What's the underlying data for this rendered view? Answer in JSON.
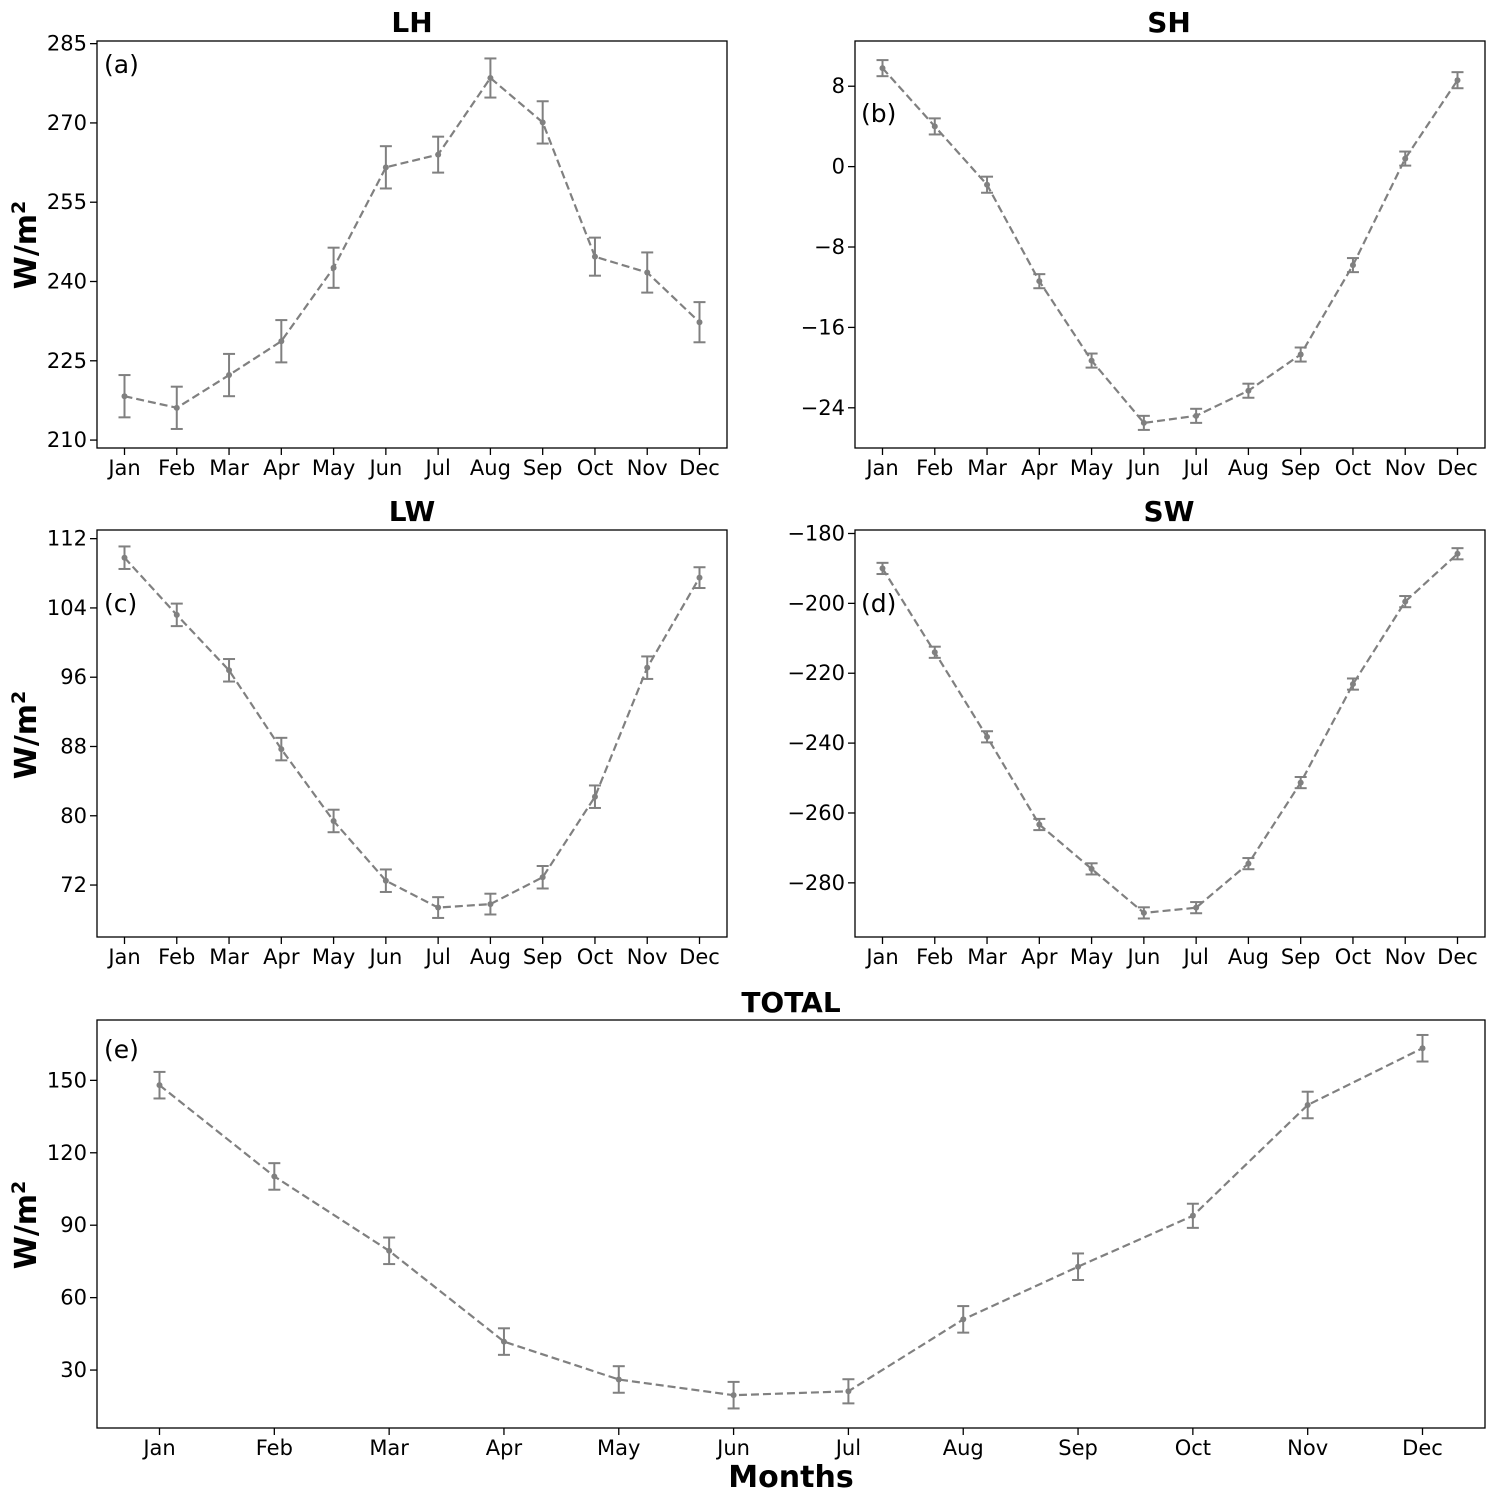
{
  "figure": {
    "xlabel": "Months",
    "series_color": "#808080"
  },
  "chart_data": [
    {
      "id": "a",
      "type": "line",
      "title": "LH",
      "panel_label": "(a)",
      "ylabel_base": "W/m",
      "ylabel_sup": "2",
      "xlabel": "",
      "categories": [
        "Jan",
        "Feb",
        "Mar",
        "Apr",
        "May",
        "Jun",
        "Jul",
        "Aug",
        "Sep",
        "Oct",
        "Nov",
        "Dec"
      ],
      "values": [
        218.3,
        216.1,
        222.3,
        228.7,
        242.6,
        261.6,
        264.0,
        278.5,
        270.1,
        244.7,
        241.7,
        232.3
      ],
      "errors": [
        4.0,
        4.0,
        4.0,
        4.0,
        3.8,
        4.0,
        3.4,
        3.7,
        4.0,
        3.6,
        3.8,
        3.8
      ],
      "ylim": [
        208.5,
        285.5
      ],
      "yticks": [
        210,
        225,
        240,
        255,
        270,
        285
      ],
      "grid": false,
      "style": "gray dashed line with error bars"
    },
    {
      "id": "b",
      "type": "line",
      "title": "SH",
      "panel_label": "(b)",
      "ylabel_base": "",
      "ylabel_sup": "",
      "xlabel": "",
      "categories": [
        "Jan",
        "Feb",
        "Mar",
        "Apr",
        "May",
        "Jun",
        "Jul",
        "Aug",
        "Sep",
        "Oct",
        "Nov",
        "Dec"
      ],
      "values": [
        9.8,
        4.0,
        -1.8,
        -11.4,
        -19.3,
        -25.5,
        -24.8,
        -22.3,
        -18.7,
        -9.8,
        0.8,
        8.6
      ],
      "errors": [
        0.8,
        0.8,
        0.8,
        0.7,
        0.7,
        0.7,
        0.7,
        0.7,
        0.7,
        0.7,
        0.7,
        0.8
      ],
      "ylim": [
        -28.0,
        12.5
      ],
      "yticks": [
        -24,
        -16,
        -8,
        0,
        8
      ],
      "grid": false,
      "style": "gray dashed line with error bars"
    },
    {
      "id": "c",
      "type": "line",
      "title": "LW",
      "panel_label": "(c)",
      "ylabel_base": "W/m",
      "ylabel_sup": "2",
      "xlabel": "",
      "categories": [
        "Jan",
        "Feb",
        "Mar",
        "Apr",
        "May",
        "Jun",
        "Jul",
        "Aug",
        "Sep",
        "Oct",
        "Nov",
        "Dec"
      ],
      "values": [
        109.8,
        103.2,
        96.8,
        87.7,
        79.4,
        72.5,
        69.4,
        69.8,
        72.9,
        82.2,
        97.1,
        107.5
      ],
      "errors": [
        1.3,
        1.3,
        1.3,
        1.3,
        1.3,
        1.3,
        1.2,
        1.2,
        1.3,
        1.3,
        1.3,
        1.2
      ],
      "ylim": [
        66.0,
        113.0
      ],
      "yticks": [
        72,
        80,
        88,
        96,
        104,
        112
      ],
      "grid": false,
      "style": "gray dashed line with error bars"
    },
    {
      "id": "d",
      "type": "line",
      "title": "SW",
      "panel_label": "(d)",
      "ylabel_base": "",
      "ylabel_sup": "",
      "xlabel": "",
      "categories": [
        "Jan",
        "Feb",
        "Mar",
        "Apr",
        "May",
        "Jun",
        "Jul",
        "Aug",
        "Sep",
        "Oct",
        "Nov",
        "Dec"
      ],
      "values": [
        -190.0,
        -214.0,
        -238.2,
        -263.3,
        -276.0,
        -288.6,
        -287.1,
        -274.5,
        -251.3,
        -223.1,
        -199.5,
        -185.8
      ],
      "errors": [
        1.6,
        1.6,
        1.6,
        1.6,
        1.6,
        1.6,
        1.6,
        1.6,
        1.6,
        1.6,
        1.6,
        1.6
      ],
      "ylim": [
        -295.5,
        -179.0
      ],
      "yticks": [
        -280,
        -260,
        -240,
        -220,
        -200,
        -180
      ],
      "grid": false,
      "style": "gray dashed line with error bars"
    },
    {
      "id": "e",
      "type": "line",
      "title": "TOTAL",
      "panel_label": "(e)",
      "ylabel_base": "W/m",
      "ylabel_sup": "2",
      "xlabel": "Months",
      "categories": [
        "Jan",
        "Feb",
        "Mar",
        "Apr",
        "May",
        "Jun",
        "Jul",
        "Aug",
        "Sep",
        "Oct",
        "Nov",
        "Dec"
      ],
      "values": [
        148.0,
        110.2,
        79.4,
        41.8,
        26.1,
        19.6,
        21.2,
        51.0,
        72.8,
        93.9,
        139.8,
        163.3
      ],
      "errors": [
        5.5,
        5.5,
        5.5,
        5.5,
        5.5,
        5.5,
        5.0,
        5.5,
        5.5,
        5.0,
        5.5,
        5.5
      ],
      "ylim": [
        6.0,
        175.0
      ],
      "yticks": [
        30,
        60,
        90,
        120,
        150
      ],
      "grid": false,
      "style": "gray dashed line with error bars"
    }
  ]
}
